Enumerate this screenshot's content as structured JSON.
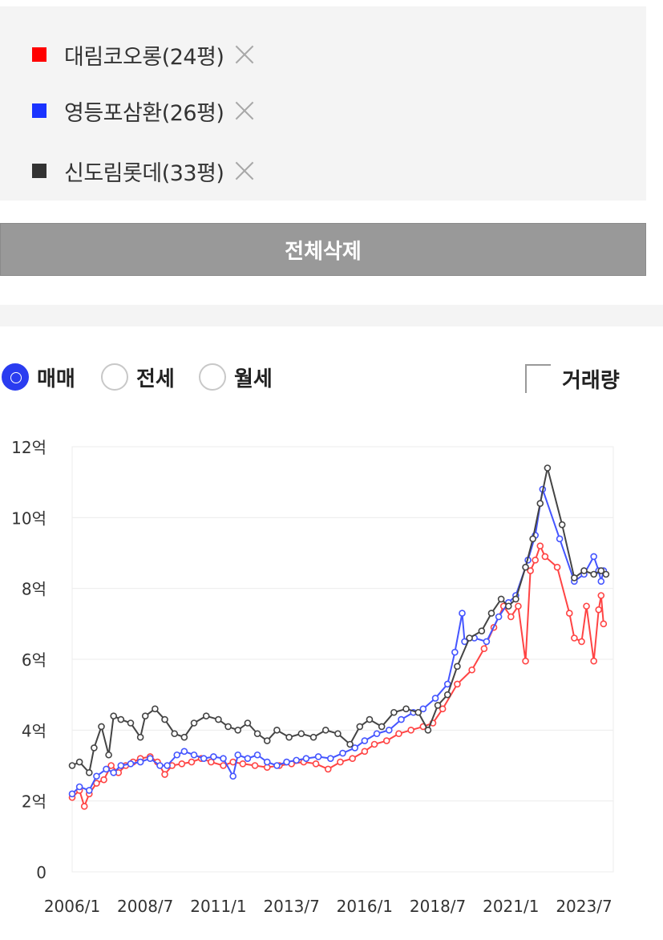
{
  "compare": {
    "items": [
      {
        "label": "대림코오롱(24평)",
        "color": "#ff0000"
      },
      {
        "label": "영등포삼환(26평)",
        "color": "#1a33ff"
      },
      {
        "label": "신도림롯데(33평)",
        "color": "#333333"
      }
    ],
    "delete_all": "전체삭제"
  },
  "options": {
    "trade_types": [
      "매매",
      "전세",
      "월세"
    ],
    "selected": "매매",
    "volume_label": "거래량",
    "volume_checked": false
  },
  "chart_data": {
    "type": "line",
    "x_ticks": [
      "2006/1",
      "2008/7",
      "2011/1",
      "2013/7",
      "2016/1",
      "2018/7",
      "2021/1",
      "2023/7"
    ],
    "y_ticks": [
      "0",
      "2억",
      "4억",
      "6억",
      "8억",
      "10억",
      "12억"
    ],
    "ylim": [
      0,
      12
    ],
    "xlim": [
      "2006/1",
      "2024/7"
    ],
    "grid": true,
    "series": [
      {
        "name": "대림코오롱(24평)",
        "color": "#ff4444",
        "points": [
          [
            "2006/1",
            2.1
          ],
          [
            "2006/4",
            2.3
          ],
          [
            "2006/6",
            1.85
          ],
          [
            "2006/8",
            2.2
          ],
          [
            "2006/11",
            2.5
          ],
          [
            "2007/2",
            2.6
          ],
          [
            "2007/5",
            3.0
          ],
          [
            "2007/8",
            2.8
          ],
          [
            "2007/11",
            3.0
          ],
          [
            "2008/2",
            3.1
          ],
          [
            "2008/5",
            3.2
          ],
          [
            "2008/9",
            3.25
          ],
          [
            "2008/12",
            3.1
          ],
          [
            "2009/3",
            2.75
          ],
          [
            "2009/6",
            3.0
          ],
          [
            "2009/10",
            3.05
          ],
          [
            "2010/2",
            3.1
          ],
          [
            "2010/6",
            3.2
          ],
          [
            "2010/10",
            3.1
          ],
          [
            "2011/3",
            3.0
          ],
          [
            "2011/7",
            3.1
          ],
          [
            "2011/11",
            3.05
          ],
          [
            "2012/4",
            3.0
          ],
          [
            "2012/9",
            2.95
          ],
          [
            "2013/2",
            3.0
          ],
          [
            "2013/7",
            3.05
          ],
          [
            "2013/12",
            3.1
          ],
          [
            "2014/5",
            3.05
          ],
          [
            "2014/10",
            2.9
          ],
          [
            "2015/3",
            3.1
          ],
          [
            "2015/8",
            3.2
          ],
          [
            "2016/1",
            3.4
          ],
          [
            "2016/5",
            3.6
          ],
          [
            "2016/10",
            3.7
          ],
          [
            "2017/3",
            3.9
          ],
          [
            "2017/8",
            4.0
          ],
          [
            "2018/1",
            4.1
          ],
          [
            "2018/5",
            4.2
          ],
          [
            "2018/9",
            4.6
          ],
          [
            "2019/3",
            5.3
          ],
          [
            "2019/9",
            5.7
          ],
          [
            "2020/2",
            6.3
          ],
          [
            "2020/6",
            6.9
          ],
          [
            "2020/10",
            7.5
          ],
          [
            "2021/1",
            7.2
          ],
          [
            "2021/4",
            7.5
          ],
          [
            "2021/7",
            5.95
          ],
          [
            "2021/9",
            8.5
          ],
          [
            "2021/11",
            8.8
          ],
          [
            "2022/1",
            9.2
          ],
          [
            "2022/3",
            8.9
          ],
          [
            "2022/8",
            8.6
          ],
          [
            "2023/1",
            7.3
          ],
          [
            "2023/3",
            6.6
          ],
          [
            "2023/6",
            6.5
          ],
          [
            "2023/8",
            7.5
          ],
          [
            "2023/11",
            5.95
          ],
          [
            "2024/1",
            7.4
          ],
          [
            "2024/2",
            7.8
          ],
          [
            "2024/3",
            7.0
          ]
        ]
      },
      {
        "name": "영등포삼환(26평)",
        "color": "#4455ff",
        "points": [
          [
            "2006/1",
            2.2
          ],
          [
            "2006/4",
            2.4
          ],
          [
            "2006/8",
            2.3
          ],
          [
            "2006/11",
            2.7
          ],
          [
            "2007/3",
            2.9
          ],
          [
            "2007/6",
            2.8
          ],
          [
            "2007/9",
            3.0
          ],
          [
            "2008/1",
            3.05
          ],
          [
            "2008/5",
            3.1
          ],
          [
            "2008/9",
            3.2
          ],
          [
            "2009/1",
            3.0
          ],
          [
            "2009/4",
            3.0
          ],
          [
            "2009/8",
            3.3
          ],
          [
            "2009/11",
            3.4
          ],
          [
            "2010/3",
            3.3
          ],
          [
            "2010/7",
            3.2
          ],
          [
            "2010/11",
            3.25
          ],
          [
            "2011/3",
            3.2
          ],
          [
            "2011/7",
            2.7
          ],
          [
            "2011/9",
            3.3
          ],
          [
            "2012/1",
            3.2
          ],
          [
            "2012/5",
            3.3
          ],
          [
            "2012/9",
            3.1
          ],
          [
            "2013/1",
            3.0
          ],
          [
            "2013/5",
            3.1
          ],
          [
            "2013/9",
            3.15
          ],
          [
            "2014/1",
            3.2
          ],
          [
            "2014/6",
            3.25
          ],
          [
            "2014/11",
            3.2
          ],
          [
            "2015/4",
            3.35
          ],
          [
            "2015/9",
            3.5
          ],
          [
            "2016/1",
            3.7
          ],
          [
            "2016/6",
            3.9
          ],
          [
            "2016/11",
            4.0
          ],
          [
            "2017/4",
            4.3
          ],
          [
            "2017/9",
            4.5
          ],
          [
            "2018/1",
            4.6
          ],
          [
            "2018/6",
            4.9
          ],
          [
            "2018/11",
            5.3
          ],
          [
            "2019/2",
            6.2
          ],
          [
            "2019/5",
            7.3
          ],
          [
            "2019/6",
            6.5
          ],
          [
            "2019/10",
            6.6
          ],
          [
            "2020/3",
            6.5
          ],
          [
            "2020/8",
            7.2
          ],
          [
            "2020/12",
            7.6
          ],
          [
            "2021/3",
            7.8
          ],
          [
            "2021/8",
            8.8
          ],
          [
            "2021/11",
            9.5
          ],
          [
            "2022/2",
            10.8
          ],
          [
            "2022/9",
            9.4
          ],
          [
            "2023/3",
            8.2
          ],
          [
            "2023/7",
            8.4
          ],
          [
            "2023/11",
            8.9
          ],
          [
            "2024/1",
            8.5
          ],
          [
            "2024/2",
            8.2
          ],
          [
            "2024/3",
            8.5
          ]
        ]
      },
      {
        "name": "신도림롯데(33평)",
        "color": "#444444",
        "points": [
          [
            "2006/1",
            3.0
          ],
          [
            "2006/4",
            3.1
          ],
          [
            "2006/8",
            2.8
          ],
          [
            "2006/10",
            3.5
          ],
          [
            "2007/1",
            4.1
          ],
          [
            "2007/4",
            3.3
          ],
          [
            "2007/6",
            4.4
          ],
          [
            "2007/9",
            4.3
          ],
          [
            "2008/1",
            4.2
          ],
          [
            "2008/5",
            3.8
          ],
          [
            "2008/7",
            4.4
          ],
          [
            "2008/11",
            4.6
          ],
          [
            "2009/3",
            4.3
          ],
          [
            "2009/7",
            3.9
          ],
          [
            "2009/11",
            3.8
          ],
          [
            "2010/3",
            4.2
          ],
          [
            "2010/8",
            4.4
          ],
          [
            "2011/1",
            4.3
          ],
          [
            "2011/5",
            4.1
          ],
          [
            "2011/9",
            4.0
          ],
          [
            "2012/1",
            4.2
          ],
          [
            "2012/5",
            3.9
          ],
          [
            "2012/9",
            3.7
          ],
          [
            "2013/1",
            4.0
          ],
          [
            "2013/6",
            3.8
          ],
          [
            "2013/11",
            3.9
          ],
          [
            "2014/4",
            3.8
          ],
          [
            "2014/9",
            4.0
          ],
          [
            "2015/2",
            3.9
          ],
          [
            "2015/7",
            3.6
          ],
          [
            "2015/11",
            4.1
          ],
          [
            "2016/3",
            4.3
          ],
          [
            "2016/8",
            4.1
          ],
          [
            "2017/1",
            4.5
          ],
          [
            "2017/6",
            4.6
          ],
          [
            "2017/11",
            4.5
          ],
          [
            "2018/3",
            4.0
          ],
          [
            "2018/7",
            4.7
          ],
          [
            "2018/11",
            5.0
          ],
          [
            "2019/3",
            5.8
          ],
          [
            "2019/8",
            6.6
          ],
          [
            "2020/1",
            6.8
          ],
          [
            "2020/5",
            7.3
          ],
          [
            "2020/9",
            7.7
          ],
          [
            "2020/12",
            7.5
          ],
          [
            "2021/3",
            7.7
          ],
          [
            "2021/7",
            8.6
          ],
          [
            "2021/10",
            9.4
          ],
          [
            "2022/1",
            10.4
          ],
          [
            "2022/4",
            11.4
          ],
          [
            "2022/10",
            9.8
          ],
          [
            "2023/3",
            8.3
          ],
          [
            "2023/7",
            8.5
          ],
          [
            "2023/11",
            8.4
          ],
          [
            "2024/2",
            8.5
          ],
          [
            "2024/4",
            8.4
          ]
        ]
      }
    ]
  }
}
